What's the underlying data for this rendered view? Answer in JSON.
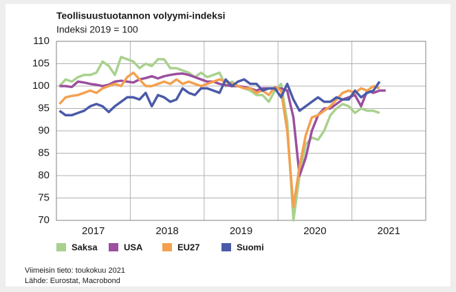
{
  "chart_data": {
    "type": "line",
    "title": "Teollisuustuotannon volyymi-indeksi",
    "subtitle": "Indeksi 2019 = 100",
    "notes": [
      "Viimeisin tieto: toukokuu 2021",
      "Lähde: Eurostat, Macrobond"
    ],
    "categories": [
      null,
      null,
      null,
      null,
      null,
      null,
      "2017",
      null,
      null,
      null,
      null,
      null,
      null,
      null,
      null,
      null,
      null,
      null,
      "2018",
      null,
      null,
      null,
      null,
      null,
      null,
      null,
      null,
      null,
      null,
      null,
      "2019",
      null,
      null,
      null,
      null,
      null,
      null,
      null,
      null,
      null,
      null,
      null,
      "2020",
      null,
      null,
      null,
      null,
      null,
      null,
      null,
      null,
      null,
      null,
      null,
      "2021",
      null,
      null,
      null,
      null,
      null
    ],
    "ylim": [
      70,
      110
    ],
    "yticks": [
      70,
      75,
      80,
      85,
      90,
      95,
      100,
      105,
      110
    ],
    "grid": true,
    "series": [
      {
        "name": "Saksa",
        "color": "#a9d18e",
        "values": [
          100,
          101.5,
          101,
          102,
          102.5,
          102.5,
          103,
          105.5,
          104.5,
          102.5,
          106.5,
          106,
          105.5,
          104,
          105,
          104.5,
          106,
          106,
          104,
          104,
          103.5,
          103,
          102,
          103,
          102,
          102.5,
          103,
          100,
          101,
          100,
          99.5,
          99,
          98,
          98,
          96.5,
          99,
          100.5,
          92,
          70,
          80,
          87,
          88.5,
          88,
          90,
          93.5,
          95,
          96,
          95.5,
          94,
          95,
          94.5,
          94.5,
          94,
          null,
          null,
          null,
          null,
          null,
          null,
          null
        ]
      },
      {
        "name": "USA",
        "color": "#9b4f9e",
        "values": [
          100,
          100,
          99.8,
          101,
          100.8,
          100.5,
          100.3,
          100,
          100.3,
          101,
          101.2,
          101,
          100.8,
          101.5,
          101.8,
          102.2,
          101.7,
          102.2,
          102.5,
          102.7,
          102.8,
          102.5,
          102,
          101.5,
          101,
          101,
          100.5,
          100.2,
          100,
          100,
          99.8,
          99.5,
          99,
          99.5,
          99.5,
          99.3,
          99.5,
          99,
          93,
          80,
          84,
          90,
          93.5,
          95,
          95,
          96,
          97,
          97.5,
          98,
          95.5,
          99,
          98.5,
          99,
          99,
          null,
          null,
          null,
          null,
          null,
          null
        ]
      },
      {
        "name": "EU27",
        "color": "#f4a04e",
        "values": [
          96,
          97.5,
          97.8,
          98,
          98.5,
          99,
          98.5,
          99.5,
          100,
          100.5,
          100,
          102,
          103,
          101.5,
          100,
          100,
          100.5,
          101,
          100.5,
          101.5,
          100.5,
          101,
          100.5,
          100,
          100.5,
          101,
          101.5,
          101,
          100.5,
          100,
          99.5,
          99.5,
          98.5,
          99,
          98,
          99.8,
          99,
          90,
          73,
          82,
          89,
          93,
          93.5,
          94.5,
          95.5,
          97,
          98.5,
          99,
          98.5,
          99.5,
          99,
          100,
          99.5,
          null,
          null,
          null,
          null,
          null,
          null,
          null
        ]
      },
      {
        "name": "Suomi",
        "color": "#4a5aa8",
        "values": [
          94.5,
          93.5,
          93.5,
          94,
          94.5,
          95.5,
          96,
          95.5,
          94.2,
          95.5,
          96.5,
          97.5,
          97.5,
          97,
          98.5,
          95.5,
          98,
          97.5,
          96.5,
          97,
          99.5,
          98.5,
          98,
          99.5,
          99.5,
          99,
          98.5,
          101.5,
          100,
          101,
          101.5,
          100.5,
          100.5,
          99,
          99.5,
          99.5,
          97.5,
          100.5,
          97,
          94.5,
          95.5,
          96.5,
          97.5,
          96.5,
          96.5,
          97.5,
          97,
          97,
          99,
          97.5,
          98.5,
          99,
          101,
          null,
          null,
          null,
          null,
          null,
          null,
          null
        ]
      }
    ]
  }
}
